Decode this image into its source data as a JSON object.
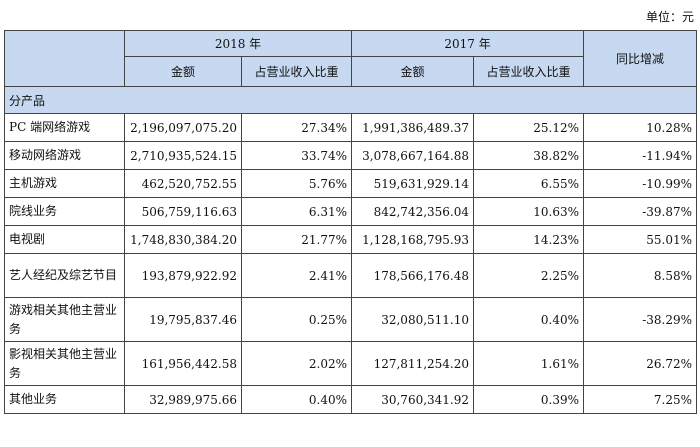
{
  "unit_label": "单位：元",
  "header": {
    "year_2018": "2018 年",
    "year_2017": "2017 年",
    "yoy": "同比增减",
    "amount": "金额",
    "ratio": "占营业收入比重"
  },
  "section_label": "分产品",
  "rows": [
    {
      "name": "PC 端网络游戏",
      "amt2018": "2,196,097,075.20",
      "pct2018": "27.34%",
      "amt2017": "1,991,386,489.37",
      "pct2017": "25.12%",
      "yoy": "10.28%"
    },
    {
      "name": "移动网络游戏",
      "amt2018": "2,710,935,524.15",
      "pct2018": "33.74%",
      "amt2017": "3,078,667,164.88",
      "pct2017": "38.82%",
      "yoy": "-11.94%"
    },
    {
      "name": "主机游戏",
      "amt2018": "462,520,752.55",
      "pct2018": "5.76%",
      "amt2017": "519,631,929.14",
      "pct2017": "6.55%",
      "yoy": "-10.99%"
    },
    {
      "name": "院线业务",
      "amt2018": "506,759,116.63",
      "pct2018": "6.31%",
      "amt2017": "842,742,356.04",
      "pct2017": "10.63%",
      "yoy": "-39.87%"
    },
    {
      "name": "电视剧",
      "amt2018": "1,748,830,384.20",
      "pct2018": "21.77%",
      "amt2017": "1,128,168,795.93",
      "pct2017": "14.23%",
      "yoy": "55.01%"
    },
    {
      "name": "艺人经纪及综艺节目",
      "amt2018": "193,879,922.92",
      "pct2018": "2.41%",
      "amt2017": "178,566,176.48",
      "pct2017": "2.25%",
      "yoy": "8.58%"
    },
    {
      "name": "游戏相关其他主营业务",
      "amt2018": "19,795,837.46",
      "pct2018": "0.25%",
      "amt2017": "32,080,511.10",
      "pct2017": "0.40%",
      "yoy": "-38.29%"
    },
    {
      "name": "影视相关其他主营业务",
      "amt2018": "161,956,442.58",
      "pct2018": "2.02%",
      "amt2017": "127,811,254.20",
      "pct2017": "1.61%",
      "yoy": "26.72%"
    },
    {
      "name": "其他业务",
      "amt2018": "32,989,975.66",
      "pct2018": "0.40%",
      "amt2017": "30,760,341.92",
      "pct2017": "0.39%",
      "yoy": "7.25%"
    }
  ]
}
